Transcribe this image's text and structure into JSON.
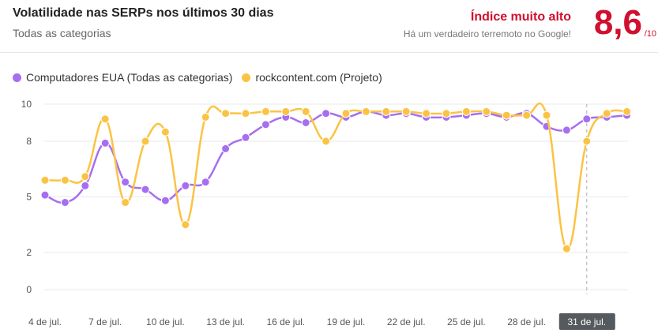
{
  "header": {
    "title": "Volatilidade nas SERPs nos últimos 30 dias",
    "subtitle": "Todas as categorias",
    "index_label": "Índice muito alto",
    "index_desc": "Há um verdadeiro terremoto no Google!",
    "score": "8,6",
    "score_max": "/10"
  },
  "colors": {
    "purple": "#a66ff0",
    "yellow": "#fbc344",
    "accent_red": "#d0102e"
  },
  "chart_data": {
    "type": "line",
    "x": [
      "4 de jul.",
      "5 de jul.",
      "6 de jul.",
      "7 de jul.",
      "8 de jul.",
      "9 de jul.",
      "10 de jul.",
      "11 de jul.",
      "12 de jul.",
      "13 de jul.",
      "14 de jul.",
      "15 de jul.",
      "16 de jul.",
      "17 de jul.",
      "18 de jul.",
      "19 de jul.",
      "20 de jul.",
      "21 de jul.",
      "22 de jul.",
      "23 de jul.",
      "24 de jul.",
      "25 de jul.",
      "26 de jul.",
      "27 de jul.",
      "28 de jul.",
      "29 de jul.",
      "30 de jul.",
      "31 de jul.",
      "1 de ago.",
      "2 de ago."
    ],
    "tick_labels": [
      "4 de jul.",
      "7 de jul.",
      "10 de jul.",
      "13 de jul.",
      "16 de jul.",
      "19 de jul.",
      "22 de jul.",
      "25 de jul.",
      "28 de jul.",
      "31 de jul."
    ],
    "highlighted_tick": "31 de jul.",
    "y_ticks": [
      "0",
      "2",
      "5",
      "8",
      "10"
    ],
    "ylim": [
      0,
      10
    ],
    "grid": true,
    "legend_position": "top-left",
    "series": [
      {
        "name": "Computadores EUA (Todas as categorias)",
        "color": "#a66ff0",
        "values": [
          5.1,
          4.7,
          5.6,
          7.9,
          5.8,
          5.4,
          4.8,
          5.6,
          5.8,
          7.6,
          8.2,
          8.9,
          9.3,
          9.0,
          9.5,
          9.3,
          9.6,
          9.4,
          9.5,
          9.3,
          9.3,
          9.4,
          9.5,
          9.3,
          9.5,
          8.8,
          8.6,
          9.2,
          9.3,
          9.4
        ]
      },
      {
        "name": "rockcontent.com (Projeto)",
        "color": "#fbc344",
        "values": [
          5.9,
          5.9,
          6.1,
          9.2,
          4.7,
          8.0,
          8.5,
          3.5,
          9.3,
          9.5,
          9.5,
          9.6,
          9.6,
          9.6,
          8.0,
          9.5,
          9.6,
          9.6,
          9.6,
          9.5,
          9.5,
          9.6,
          9.6,
          9.4,
          9.4,
          9.4,
          2.2,
          8.0,
          9.5,
          9.6
        ]
      }
    ]
  }
}
